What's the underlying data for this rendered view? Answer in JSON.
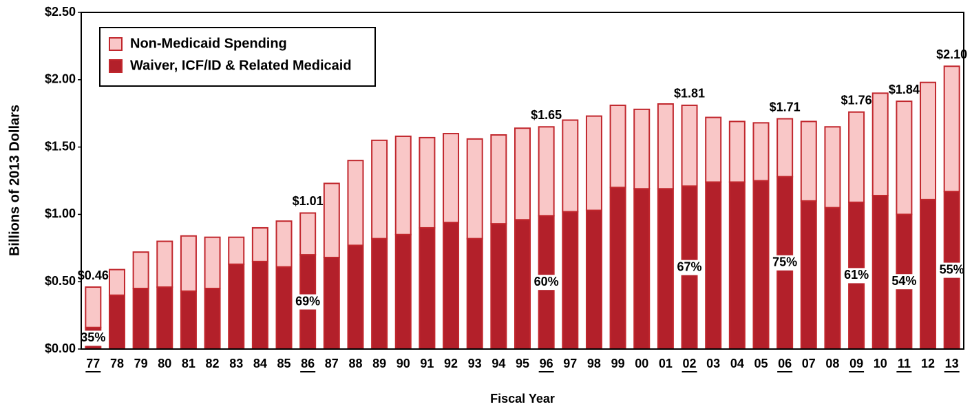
{
  "chart_data": {
    "type": "stacked_bar",
    "x_label": "Fiscal Year",
    "y_label": "Billions of 2013 Dollars",
    "categories": [
      "77",
      "78",
      "79",
      "80",
      "81",
      "82",
      "83",
      "84",
      "85",
      "86",
      "87",
      "88",
      "89",
      "90",
      "91",
      "92",
      "93",
      "94",
      "95",
      "96",
      "97",
      "98",
      "99",
      "00",
      "01",
      "02",
      "03",
      "04",
      "05",
      "06",
      "07",
      "08",
      "09",
      "10",
      "11",
      "12",
      "13"
    ],
    "underline": [
      0,
      9,
      19,
      25,
      29,
      32,
      34,
      36
    ],
    "series": [
      {
        "name": "Waiver, ICF/ID & Related Medicaid",
        "color": "#b3202a",
        "values": [
          0.16,
          0.4,
          0.45,
          0.46,
          0.43,
          0.45,
          0.63,
          0.65,
          0.61,
          0.7,
          0.68,
          0.77,
          0.82,
          0.85,
          0.9,
          0.94,
          0.82,
          0.93,
          0.96,
          0.99,
          1.02,
          1.03,
          1.2,
          1.19,
          1.19,
          1.21,
          1.24,
          1.24,
          1.25,
          1.28,
          1.1,
          1.05,
          1.09,
          1.14,
          1.0,
          1.11,
          1.17
        ]
      },
      {
        "name": "Non-Medicaid Spending",
        "color": "#f9c7c7",
        "values": [
          0.3,
          0.19,
          0.27,
          0.34,
          0.41,
          0.38,
          0.2,
          0.25,
          0.34,
          0.31,
          0.55,
          0.63,
          0.73,
          0.73,
          0.67,
          0.66,
          0.74,
          0.66,
          0.68,
          0.66,
          0.68,
          0.7,
          0.61,
          0.59,
          0.63,
          0.6,
          0.48,
          0.45,
          0.43,
          0.43,
          0.59,
          0.6,
          0.67,
          0.76,
          0.84,
          0.87,
          0.93
        ]
      }
    ],
    "outline_color": "#c1272d",
    "total_labels": [
      {
        "category": "77",
        "text": "$0.46"
      },
      {
        "category": "86",
        "text": "$1.01"
      },
      {
        "category": "96",
        "text": "$1.65"
      },
      {
        "category": "02",
        "text": "$1.81"
      },
      {
        "category": "06",
        "text": "$1.71"
      },
      {
        "category": "09",
        "text": "$1.76"
      },
      {
        "category": "11",
        "text": "$1.84"
      },
      {
        "category": "13",
        "text": "$2.10"
      }
    ],
    "share_labels": [
      {
        "category": "77",
        "text": "35%"
      },
      {
        "category": "86",
        "text": "69%"
      },
      {
        "category": "96",
        "text": "60%"
      },
      {
        "category": "02",
        "text": "67%"
      },
      {
        "category": "06",
        "text": "75%"
      },
      {
        "category": "09",
        "text": "61%"
      },
      {
        "category": "11",
        "text": "54%"
      },
      {
        "category": "13",
        "text": "55%"
      }
    ],
    "ylim": [
      0,
      2.5
    ],
    "yticks": [
      {
        "value": 0,
        "label": "$0.00"
      },
      {
        "value": 0.5,
        "label": "$0.50"
      },
      {
        "value": 1,
        "label": "$1.00"
      },
      {
        "value": 1.5,
        "label": "$1.50"
      },
      {
        "value": 2,
        "label": "$2.00"
      },
      {
        "value": 2.5,
        "label": "$2.50"
      }
    ],
    "legend": "top-left"
  }
}
